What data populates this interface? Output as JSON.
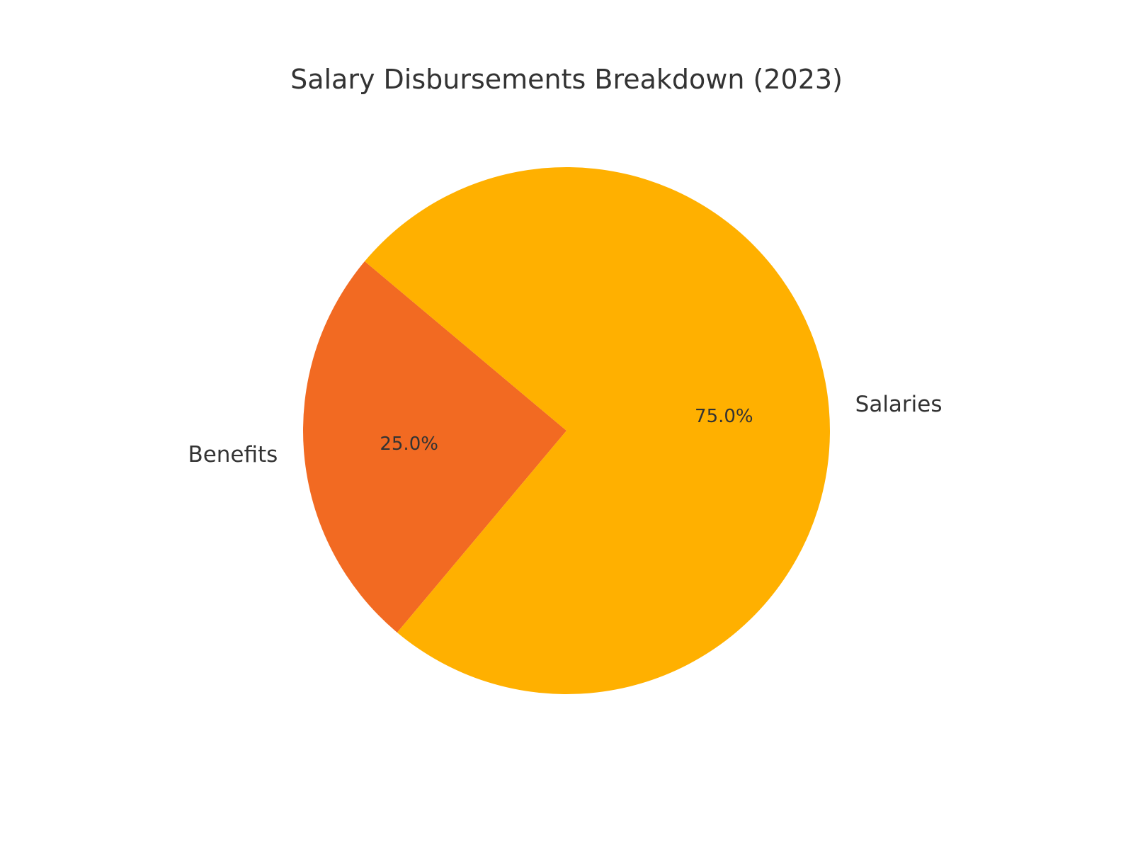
{
  "chart_data": {
    "type": "pie",
    "title": "Salary Disbursements Breakdown (2023)",
    "start_angle_deg": 140,
    "direction": "counterclockwise",
    "slices": [
      {
        "label": "Benefits",
        "value": 25.0,
        "pct_label": "25.0%",
        "color": "#F26A22"
      },
      {
        "label": "Salaries",
        "value": 75.0,
        "pct_label": "75.0%",
        "color": "#FFB000"
      }
    ]
  }
}
